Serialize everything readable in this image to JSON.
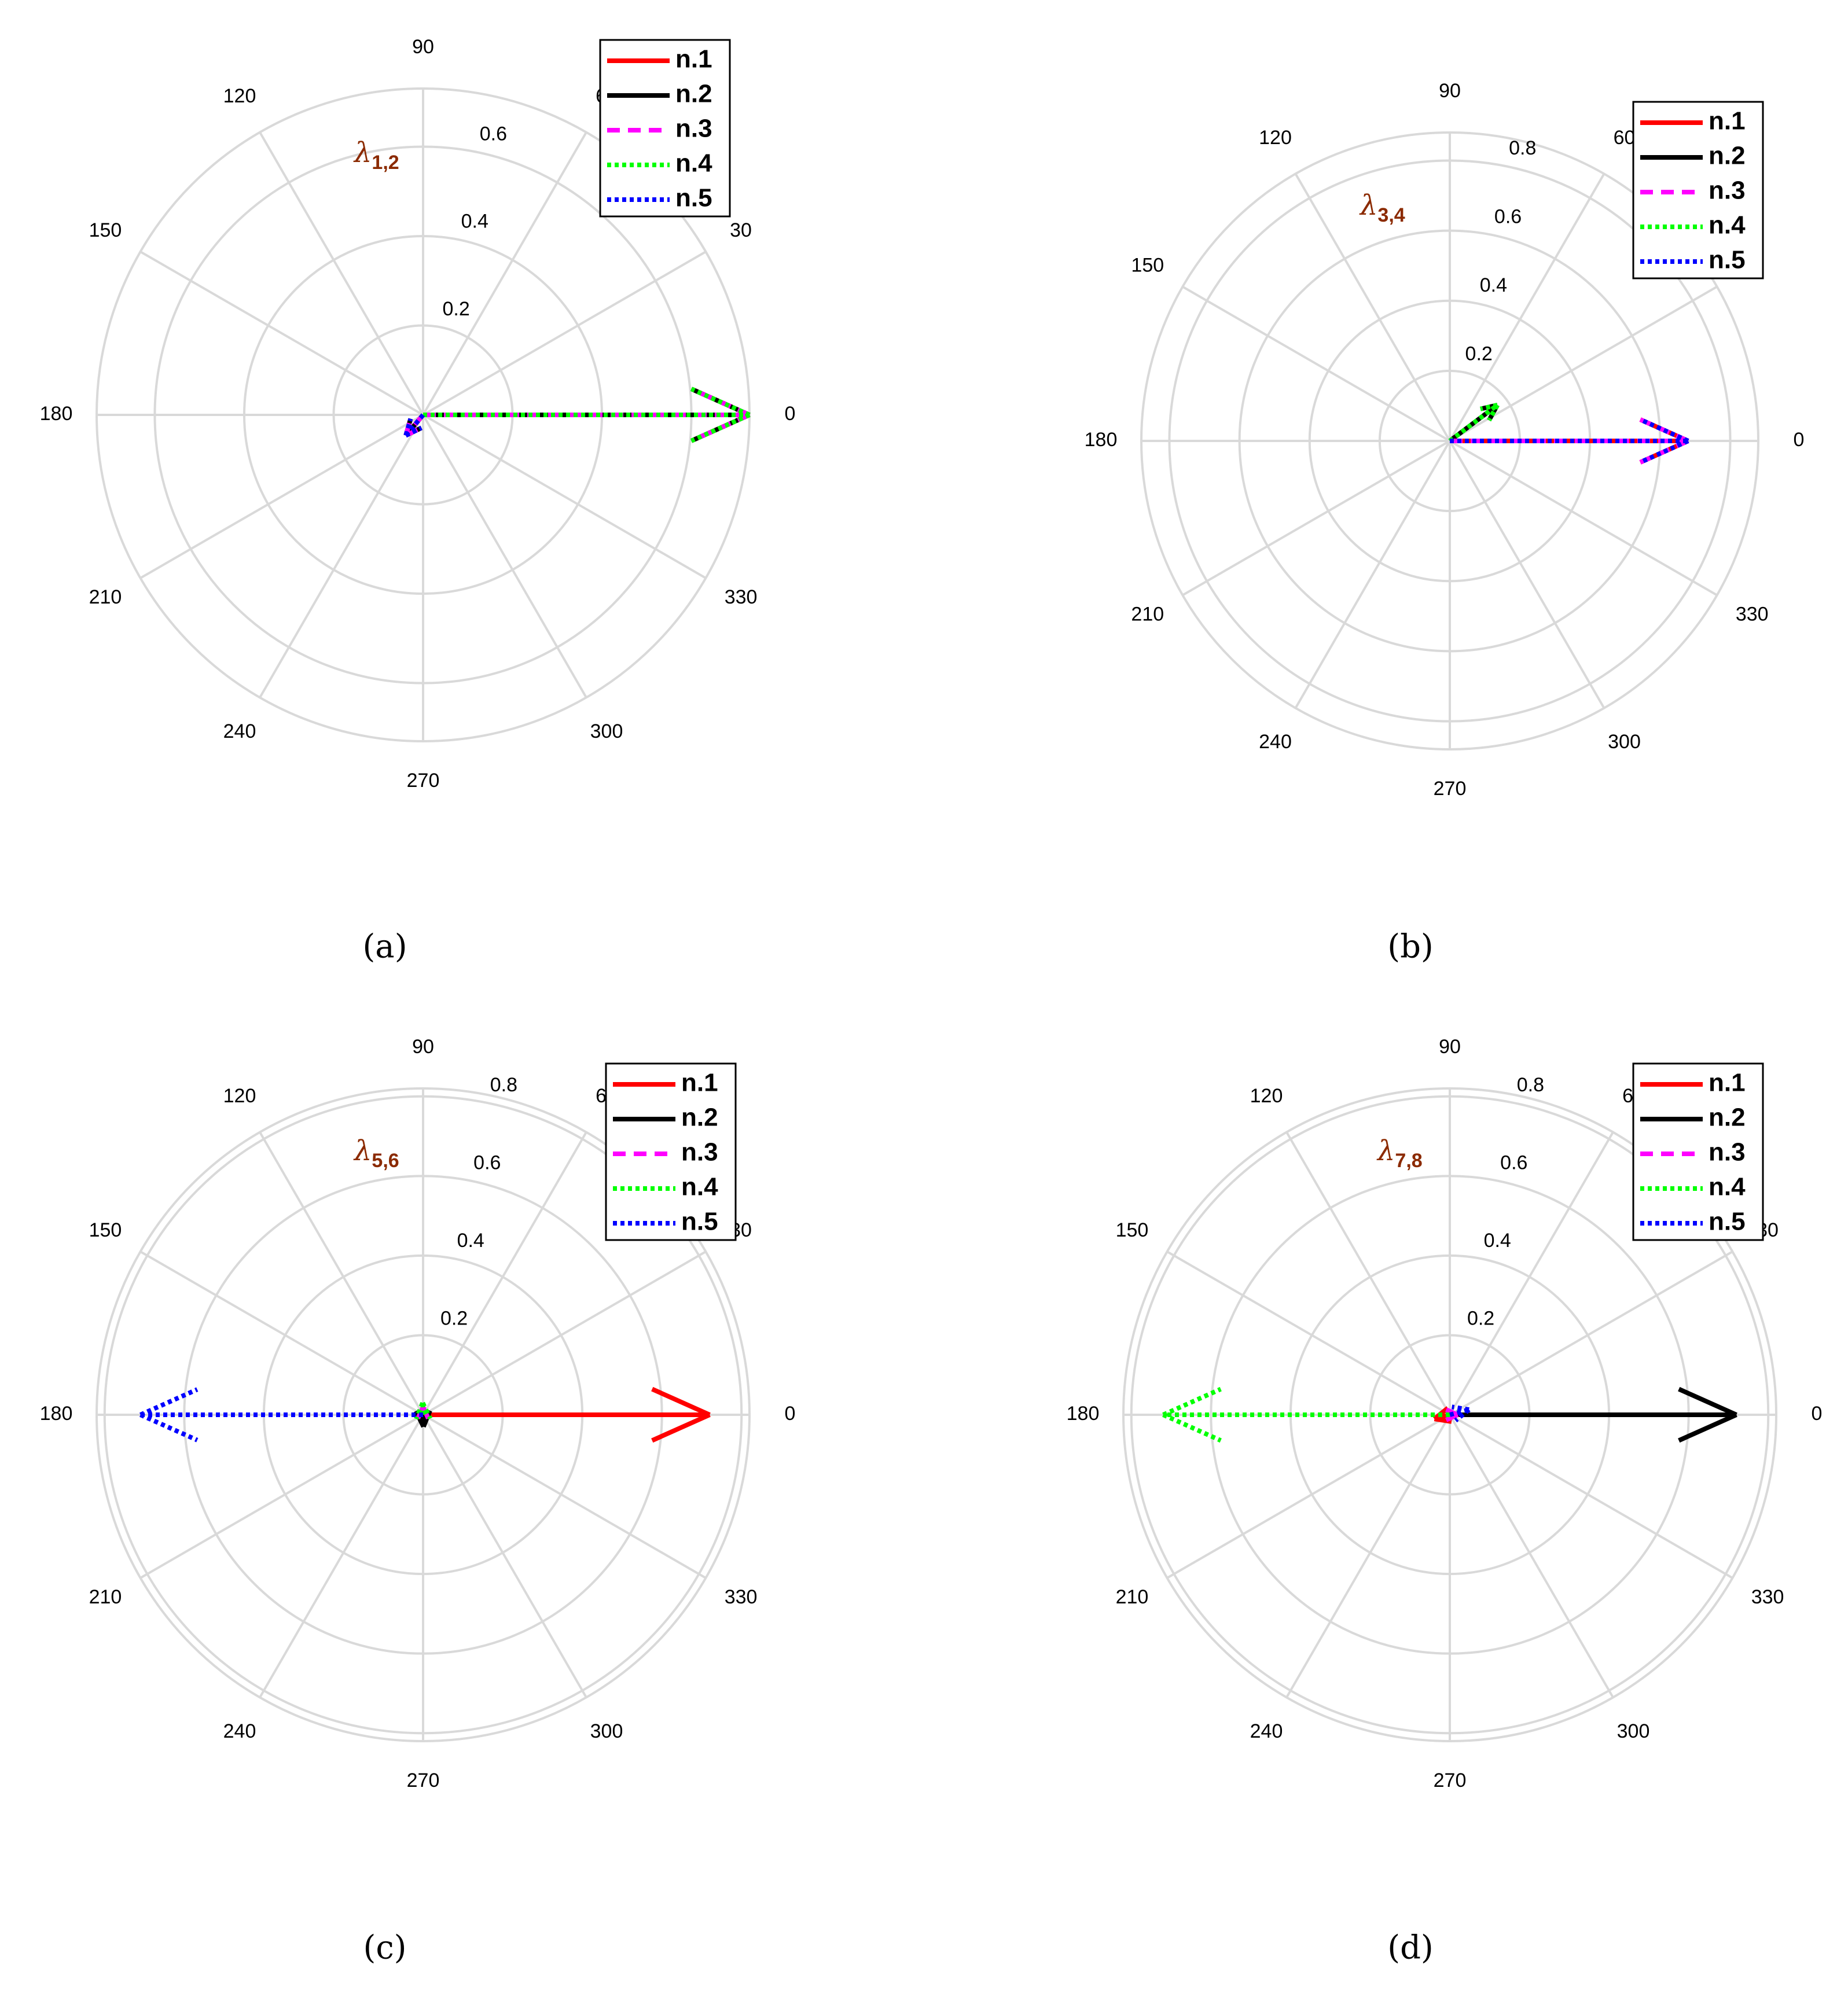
{
  "figure": {
    "colors": {
      "grid": "#d9d9d9",
      "n1": "#ff0000",
      "n2": "#000000",
      "n3": "#ff00ff",
      "n4": "#00ff00",
      "n5": "#0000ff",
      "lambda": "#8b2a00"
    }
  },
  "chart_data": [
    {
      "type": "polar-compass",
      "caption": "(a)",
      "lambda_symbol": "λ",
      "lambda_sub": "1,2",
      "theta_tick_labels": [
        "0",
        "30",
        "60",
        "90",
        "120",
        "150",
        "180",
        "210",
        "240",
        "270",
        "300",
        "330"
      ],
      "r_max": 0.73,
      "r_ticks": [
        0.2,
        0.4,
        0.6
      ],
      "r_tick_labels": [
        "0.2",
        "0.4",
        "0.6"
      ],
      "legend": [
        "n.1",
        "n.2",
        "n.3",
        "n.4",
        "n.5"
      ],
      "series": [
        {
          "name": "n.1",
          "arrows": [
            {
              "r": 0.73,
              "theta": 0
            },
            {
              "r": 0.06,
              "theta": 230
            }
          ]
        },
        {
          "name": "n.2",
          "arrows": [
            {
              "r": 0.73,
              "theta": 0
            },
            {
              "r": 0.06,
              "theta": 230
            }
          ]
        },
        {
          "name": "n.3",
          "arrows": [
            {
              "r": 0.73,
              "theta": 0
            },
            {
              "r": 0.06,
              "theta": 230
            }
          ]
        },
        {
          "name": "n.4",
          "arrows": [
            {
              "r": 0.73,
              "theta": 0
            }
          ]
        },
        {
          "name": "n.5",
          "arrows": [
            {
              "r": 0.06,
              "theta": 230
            }
          ]
        }
      ]
    },
    {
      "type": "polar-compass",
      "caption": "(b)",
      "lambda_symbol": "λ",
      "lambda_sub": "3,4",
      "theta_tick_labels": [
        "0",
        "30",
        "60",
        "90",
        "120",
        "150",
        "180",
        "210",
        "240",
        "270",
        "300",
        "330"
      ],
      "r_max": 0.88,
      "r_ticks": [
        0.2,
        0.4,
        0.6,
        0.8
      ],
      "r_tick_labels": [
        "0.2",
        "0.4",
        "0.6",
        "0.8"
      ],
      "legend": [
        "n.1",
        "n.2",
        "n.3",
        "n.4",
        "n.5"
      ],
      "series": [
        {
          "name": "n.1",
          "arrows": [
            {
              "r": 0.68,
              "theta": 0
            }
          ]
        },
        {
          "name": "n.2",
          "arrows": [
            {
              "r": 0.17,
              "theta": 37
            }
          ]
        },
        {
          "name": "n.3",
          "arrows": [
            {
              "r": 0.68,
              "theta": 0
            }
          ]
        },
        {
          "name": "n.4",
          "arrows": [
            {
              "r": 0.17,
              "theta": 37
            }
          ]
        },
        {
          "name": "n.5",
          "arrows": [
            {
              "r": 0.68,
              "theta": 0
            }
          ]
        }
      ]
    },
    {
      "type": "polar-compass",
      "caption": "(c)",
      "lambda_symbol": "λ",
      "lambda_sub": "5,6",
      "theta_tick_labels": [
        "0",
        "30",
        "60",
        "90",
        "120",
        "150",
        "180",
        "210",
        "240",
        "270",
        "300",
        "330"
      ],
      "r_max": 0.82,
      "r_ticks": [
        0.2,
        0.4,
        0.6,
        0.8
      ],
      "r_tick_labels": [
        "0.2",
        "0.4",
        "0.6",
        "0.8"
      ],
      "legend": [
        "n.1",
        "n.2",
        "n.3",
        "n.4",
        "n.5"
      ],
      "series": [
        {
          "name": "n.1",
          "arrows": [
            {
              "r": 0.72,
              "theta": 0
            }
          ]
        },
        {
          "name": "n.2",
          "arrows": [
            {
              "r": 0.03,
              "theta": 272
            }
          ]
        },
        {
          "name": "n.3",
          "arrows": [
            {
              "r": 0.02,
              "theta": 90
            }
          ]
        },
        {
          "name": "n.4",
          "arrows": [
            {
              "r": 0.03,
              "theta": 92
            }
          ]
        },
        {
          "name": "n.5",
          "arrows": [
            {
              "r": 0.71,
              "theta": 180
            }
          ]
        }
      ]
    },
    {
      "type": "polar-compass",
      "caption": "(d)",
      "lambda_symbol": "λ",
      "lambda_sub": "7,8",
      "theta_tick_labels": [
        "0",
        "30",
        "60",
        "90",
        "120",
        "150",
        "180",
        "210",
        "240",
        "270",
        "300",
        "330"
      ],
      "r_max": 0.82,
      "r_ticks": [
        0.2,
        0.4,
        0.6,
        0.8
      ],
      "r_tick_labels": [
        "0.2",
        "0.4",
        "0.6",
        "0.8"
      ],
      "legend": [
        "n.1",
        "n.2",
        "n.3",
        "n.4",
        "n.5"
      ],
      "series": [
        {
          "name": "n.1",
          "arrows": [
            {
              "r": 0.04,
              "theta": 195
            }
          ]
        },
        {
          "name": "n.2",
          "arrows": [
            {
              "r": 0.72,
              "theta": 0
            }
          ]
        },
        {
          "name": "n.3",
          "arrows": [
            {
              "r": 0.02,
              "theta": 0
            }
          ]
        },
        {
          "name": "n.4",
          "arrows": [
            {
              "r": 0.72,
              "theta": 180
            }
          ]
        },
        {
          "name": "n.5",
          "arrows": [
            {
              "r": 0.05,
              "theta": 15
            }
          ]
        }
      ]
    }
  ]
}
